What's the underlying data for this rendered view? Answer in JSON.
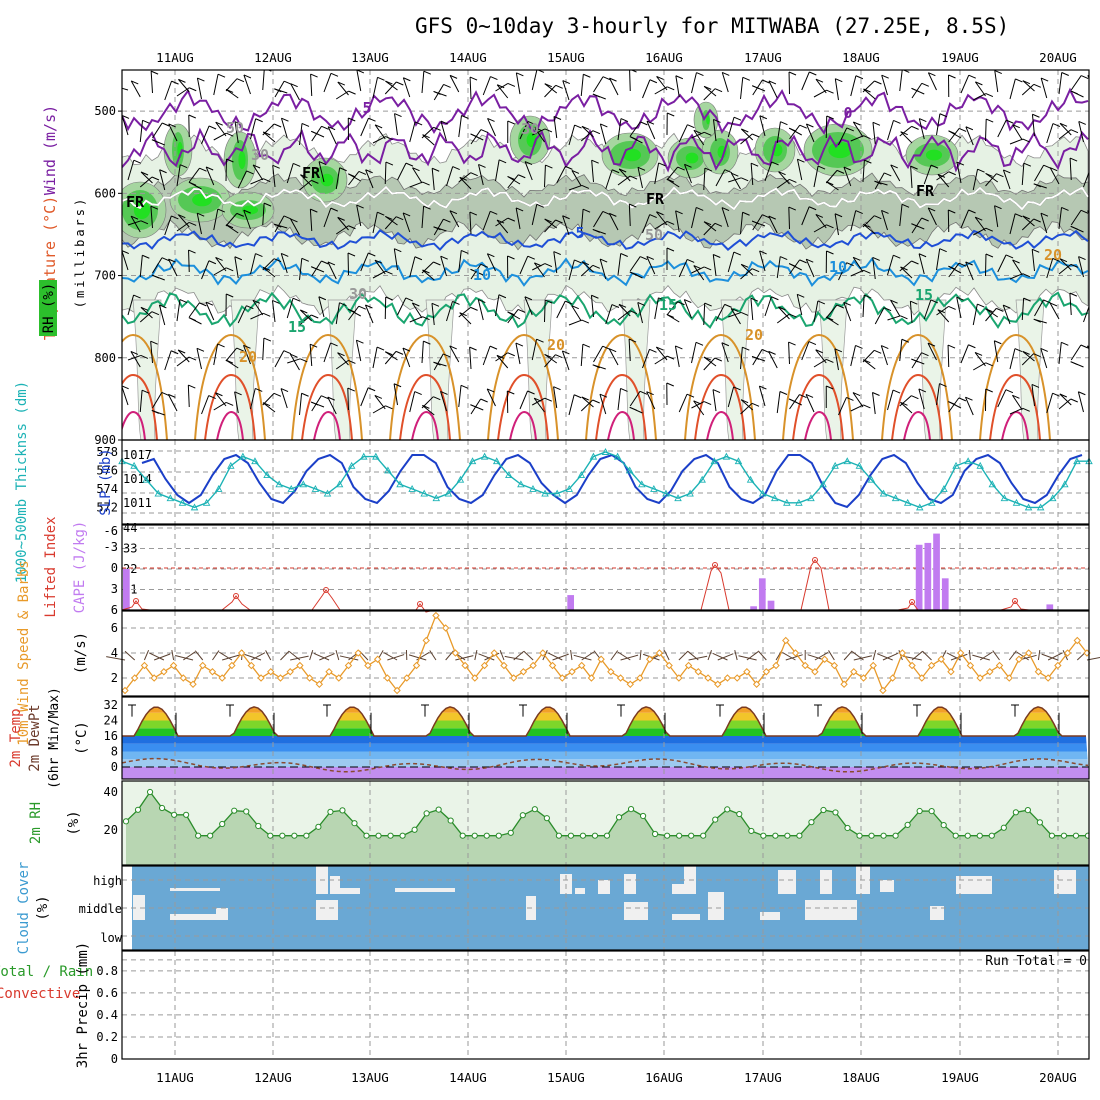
{
  "title": "GFS 0~10day 3-hourly for MITWABA (27.25E, 8.5S)",
  "dates": [
    "11AUG",
    "12AUG",
    "13AUG",
    "14AUG",
    "15AUG",
    "16AUG",
    "17AUG",
    "18AUG",
    "19AUG",
    "20AUG"
  ],
  "upper_panel": {
    "ylabel": "(millibars)",
    "legend": {
      "wind": "Wind (m/s)",
      "temperature": "Temperature (°C)",
      "rh": "RH (%)"
    },
    "pressure_ticks": [
      "500",
      "600",
      "700",
      "800",
      "900"
    ],
    "contour_labels": [
      {
        "text": "5",
        "color": "#7a1fa2"
      },
      {
        "text": "0",
        "color": "#7a1fa2"
      },
      {
        "text": "FR",
        "color": "#000000"
      },
      {
        "text": "FR",
        "color": "#000000"
      },
      {
        "text": "FR",
        "color": "#000000"
      },
      {
        "text": "FR",
        "color": "#000000"
      },
      {
        "text": "5",
        "color": "#1f4fd6"
      },
      {
        "text": "10",
        "color": "#1c8fdc"
      },
      {
        "text": "10",
        "color": "#1c8fdc"
      },
      {
        "text": "15",
        "color": "#1aa56f"
      },
      {
        "text": "15",
        "color": "#1aa56f"
      },
      {
        "text": "15",
        "color": "#1aa56f"
      },
      {
        "text": "20",
        "color": "#d8922a"
      },
      {
        "text": "20",
        "color": "#d8922a"
      },
      {
        "text": "20",
        "color": "#d8922a"
      },
      {
        "text": "20",
        "color": "#d8922a"
      },
      {
        "text": "30",
        "color": "#999999"
      },
      {
        "text": "30",
        "color": "#999999"
      },
      {
        "text": "30",
        "color": "#999999"
      },
      {
        "text": "50",
        "color": "#999999"
      },
      {
        "text": "50",
        "color": "#999999"
      }
    ]
  },
  "slp_panel": {
    "label_left": "1000~500mb Thicknss (dm)",
    "label_right": "SLP (mb)",
    "left_ticks": [
      "578",
      "576",
      "574",
      "572"
    ],
    "right_ticks": [
      "1017",
      "1014",
      "1011"
    ]
  },
  "cape_panel": {
    "label_li": "Lifted Index",
    "label_cape": "CAPE (J/kg)",
    "left_ticks": [
      "-6",
      "-3",
      "0",
      "3",
      "6"
    ],
    "right_ticks": [
      "44",
      "33",
      "22",
      "11"
    ]
  },
  "wind10_panel": {
    "label": "10m Wind Speed & Barbs",
    "units": "(m/s)",
    "ticks": [
      "6",
      "4",
      "2"
    ]
  },
  "temp_panel": {
    "label_t": "2m Temp",
    "label_td": "2m DewPt",
    "label_mm": "(6hr Min/Max)",
    "units": "(°C)",
    "ticks": [
      "32",
      "24",
      "16",
      "8",
      "0"
    ]
  },
  "rh_panel": {
    "label": "2m RH",
    "units": "(%)",
    "ticks": [
      "40",
      "20"
    ]
  },
  "cloud_panel": {
    "label": "Cloud Cover",
    "units": "(%)",
    "levels": [
      "high",
      "middle",
      "low"
    ]
  },
  "precip_panel": {
    "label_total": "Total / Rain",
    "label_conv": "Convective",
    "ylabel": "3hr Precip (mm)",
    "ticks": [
      "0.8",
      "0.6",
      "0.4",
      "0.2",
      "0"
    ],
    "run_total": "Run Total = 0"
  },
  "colors": {
    "purple": "#7a1fa2",
    "freezing": "#000000",
    "blue5": "#1f4fd6",
    "blue10": "#1c8fdc",
    "green15": "#1aa56f",
    "orange20": "#d8922a",
    "red25": "#e0502a",
    "magenta30": "#d0207a",
    "slp": "#1b3fc8",
    "thickness": "#1bb2b5",
    "cape": "#c17bf0",
    "li": "#d93a2e",
    "wind": "#e89a2a",
    "rh_line": "#2a8c2a",
    "rh_fill": "#b8d6b2",
    "cloud_bg": "#6aa8d4",
    "cloud_gap": "#f0f0f0"
  },
  "chart_data": {
    "type": "line",
    "x_dates": [
      "11AUG",
      "12AUG",
      "13AUG",
      "14AUG",
      "15AUG",
      "16AUG",
      "17AUG",
      "18AUG",
      "19AUG",
      "20AUG"
    ],
    "slp_mb": [
      1016,
      1016.5,
      1014,
      1012,
      1011,
      1012,
      1014.5,
      1016.5,
      1017,
      1016,
      1013.5,
      1011.5,
      1011,
      1012.5,
      1015,
      1016.5,
      1017,
      1016,
      1013,
      1011.5,
      1011,
      1012.5,
      1015,
      1017,
      1017,
      1016,
      1013,
      1011.5,
      1011,
      1012,
      1014.5,
      1016.5,
      1017,
      1016,
      1013.5,
      1012,
      1011,
      1012,
      1014.5,
      1016.5,
      1017,
      1016,
      1013,
      1011.5,
      1011,
      1012.5,
      1015,
      1016.5,
      1017,
      1016,
      1013,
      1011.5,
      1011,
      1012,
      1015,
      1017,
      1017,
      1016,
      1013,
      1011,
      1010.5,
      1012,
      1014.5,
      1016.5,
      1017,
      1016,
      1013.5,
      1011.5,
      1011,
      1012,
      1015,
      1016.5,
      1017,
      1016,
      1013.5,
      1011.5,
      1011,
      1012,
      1014.5,
      1016.5,
      1017
    ],
    "thickness_dm": [
      577,
      576.5,
      575,
      573.5,
      573,
      572.5,
      572,
      572.5,
      574,
      576.5,
      577.5,
      577,
      575.5,
      574.5,
      574,
      574.5,
      574,
      573.5,
      574.5,
      576.5,
      577.5,
      577.5,
      576,
      574.5,
      574,
      573.5,
      573,
      573.5,
      575,
      577,
      577.5,
      577,
      575.5,
      574.5,
      574,
      573.5,
      573.5,
      574,
      575.5,
      577.5,
      578,
      577.5,
      576,
      574.5,
      574,
      573.5,
      573,
      573.5,
      575,
      577,
      577.5,
      577,
      575,
      573.5,
      573,
      572.5,
      572.5,
      573,
      574.5,
      576.5,
      577,
      576.5,
      575,
      573.5,
      573,
      572.5,
      572,
      572.5,
      574,
      576.5,
      577,
      576.5,
      574.5,
      573,
      572.5,
      572,
      572,
      573,
      574.5,
      577,
      577
    ],
    "cape_jkg": [
      22,
      0,
      0,
      0,
      0,
      0,
      0,
      0,
      0,
      0,
      0,
      0,
      0,
      0,
      0,
      0,
      0,
      0,
      0,
      0,
      0,
      0,
      0,
      0,
      0,
      0,
      0,
      0,
      0,
      0,
      0,
      0,
      0,
      0,
      0,
      0,
      0,
      0,
      0,
      0,
      0,
      0,
      0,
      0,
      0,
      0,
      0,
      0,
      0,
      0,
      0,
      8,
      0,
      0,
      0,
      0,
      0,
      0,
      0,
      0,
      0,
      0,
      0,
      0,
      0,
      0,
      0,
      0,
      0,
      0,
      0,
      0,
      2,
      17,
      5,
      0,
      0,
      0,
      0,
      0,
      0,
      0,
      0,
      0,
      0,
      0,
      0,
      0,
      0,
      0,
      0,
      35,
      36,
      41,
      17,
      0,
      0,
      0,
      0,
      0,
      0,
      0,
      0,
      0,
      0,
      0,
      3,
      0,
      0,
      0,
      0
    ],
    "wind10_ms": [
      1,
      2,
      3,
      2,
      2.5,
      3,
      2,
      1.5,
      3,
      2.5,
      2,
      3,
      4,
      3,
      2,
      2.5,
      2,
      2.5,
      3,
      2,
      1.5,
      2.5,
      2,
      3,
      4,
      3,
      3.5,
      2,
      1,
      2,
      3,
      5,
      7,
      6,
      4,
      3,
      2,
      3,
      4,
      3,
      2,
      2.5,
      3,
      4,
      3,
      2,
      2.5,
      3,
      2,
      3.5,
      2.5,
      2,
      1.5,
      2,
      3.5,
      4,
      3,
      2,
      3,
      2.5,
      2,
      1.5,
      2,
      2,
      2.5,
      1.5,
      2.5,
      3,
      5,
      4,
      3,
      2.5,
      3.5,
      3,
      1.5,
      2.5,
      2,
      3,
      1,
      2,
      4,
      3,
      2,
      3,
      3.5,
      2.5,
      4,
      3,
      2,
      2.5,
      3,
      2,
      3.5,
      4,
      2.5,
      2,
      3,
      4,
      5,
      4
    ]
  }
}
